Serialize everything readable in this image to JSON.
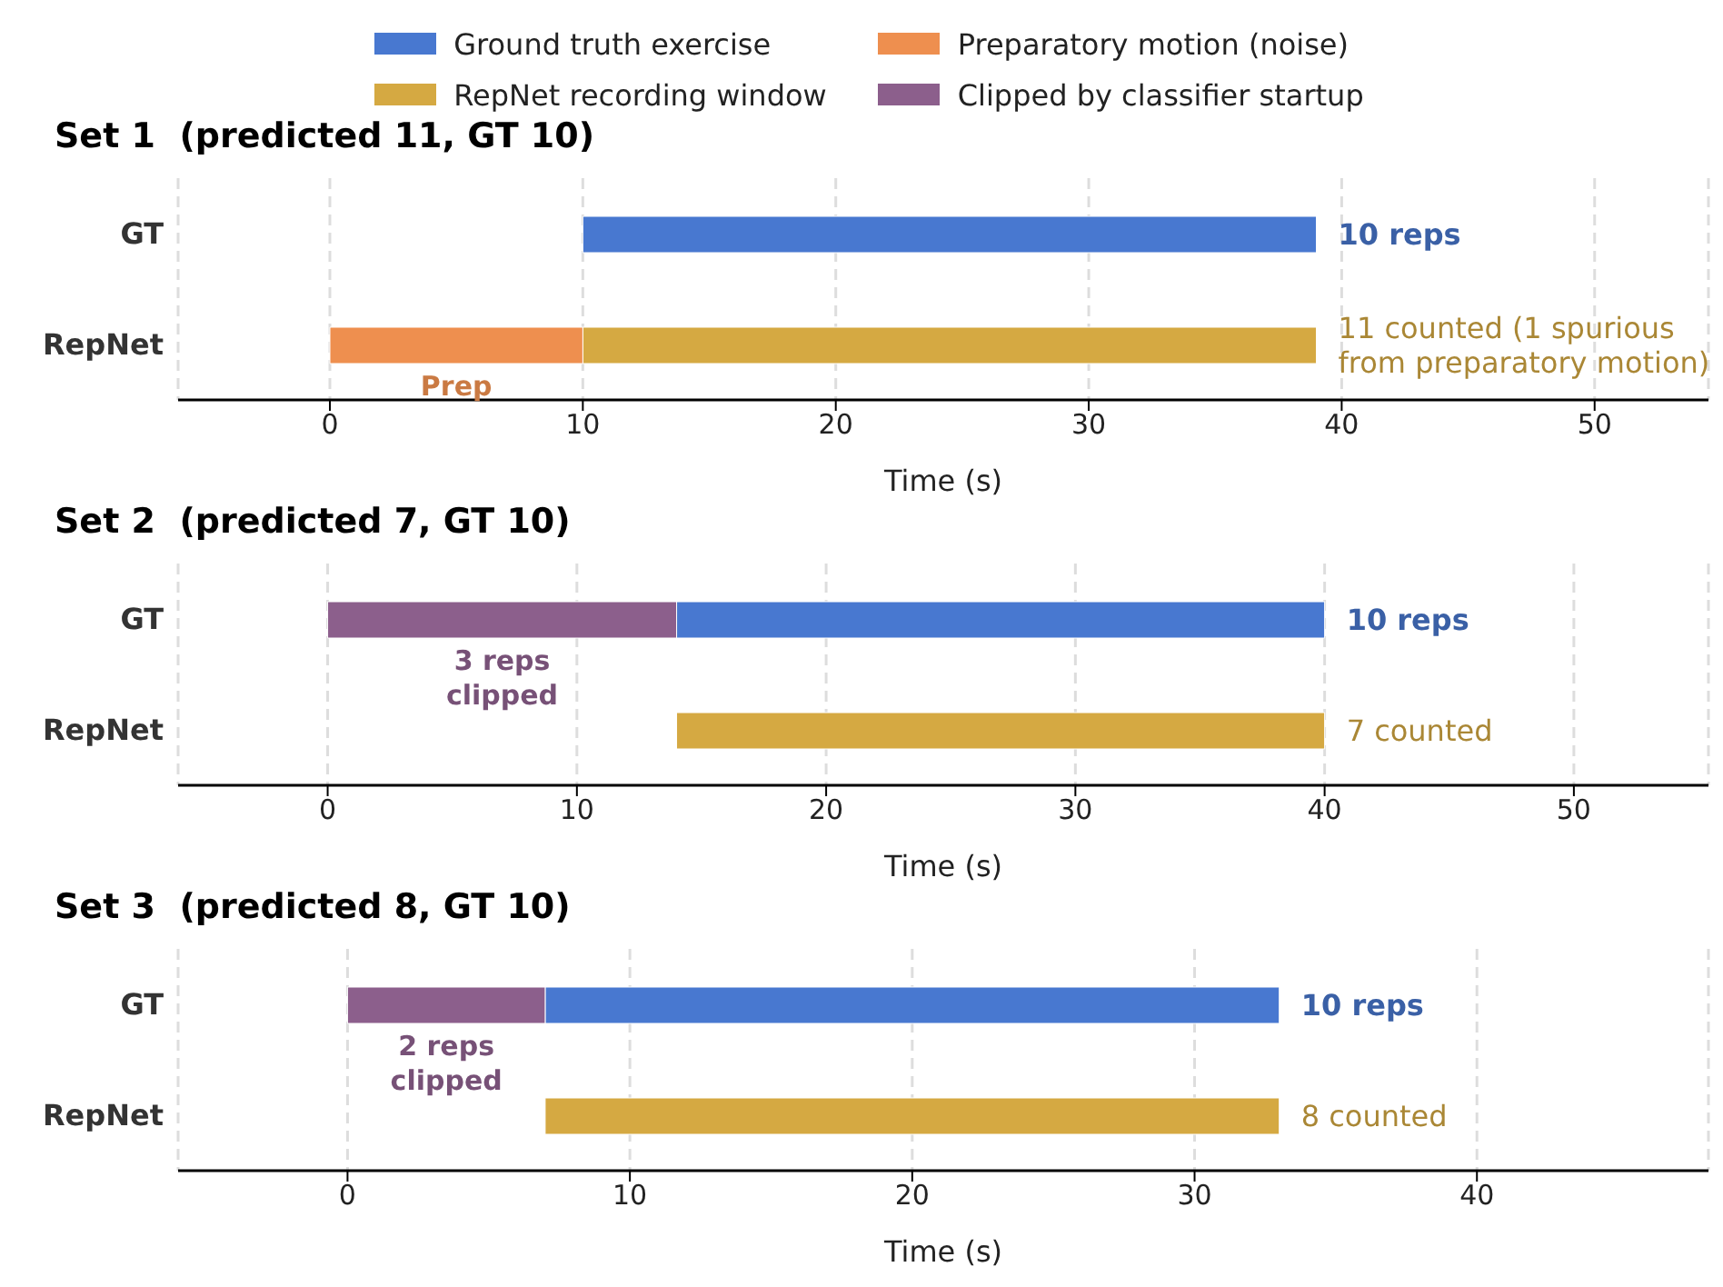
{
  "chart_data": [
    {
      "type": "bar",
      "orientation": "horizontal",
      "title": "Set 1  (predicted 11, GT 10)",
      "xlabel": "Time (s)",
      "categories": [
        "GT",
        "RepNet"
      ],
      "legend": "top",
      "grid": "x",
      "xlim": [
        -6,
        54.5
      ],
      "xticks": [
        0,
        10,
        20,
        30,
        40,
        50
      ],
      "series": [
        {
          "name": "Ground truth exercise",
          "color": "#4878d0",
          "values": [
            29,
            null
          ],
          "base": [
            10,
            null
          ]
        },
        {
          "name": "RepNet recording window",
          "color": "#d5a942",
          "values": [
            null,
            29
          ],
          "base": [
            null,
            10
          ]
        },
        {
          "name": "Preparatory motion (noise)",
          "color": "#ee8f4f",
          "values": [
            null,
            10
          ],
          "base": [
            null,
            0
          ]
        },
        {
          "name": "Clipped by classifier startup",
          "color": "#8c5f8c",
          "values": [
            null,
            null
          ],
          "base": [
            null,
            null
          ]
        }
      ],
      "annotations": [
        {
          "text": "10 reps",
          "x": 39,
          "y": "GT"
        },
        {
          "text": "11 counted (1 spurious\nfrom preparatory motion)",
          "x": 39,
          "y": "RepNet"
        },
        "Prep"
      ]
    },
    {
      "type": "bar",
      "orientation": "horizontal",
      "title": "Set 2  (predicted 7, GT 10)",
      "xlabel": "Time (s)",
      "categories": [
        "GT",
        "RepNet"
      ],
      "grid": "x",
      "xlim": [
        -6,
        55.4
      ],
      "xticks": [
        0,
        10,
        20,
        30,
        40,
        50
      ],
      "series": [
        {
          "color": "#4878d0",
          "values": [
            26,
            null
          ],
          "base": [
            14,
            null
          ]
        },
        {
          "color": "#d5a942",
          "values": [
            null,
            26
          ],
          "base": [
            null,
            14
          ]
        },
        {
          "color": "#8c5f8c",
          "values": [
            14,
            null
          ],
          "base": [
            0,
            null
          ]
        }
      ],
      "annotations": [
        {
          "text": "10 reps",
          "x": 40,
          "y": "GT"
        },
        {
          "text": "7 counted",
          "x": 40,
          "y": "RepNet"
        },
        "3 reps\nclipped"
      ]
    },
    {
      "type": "bar",
      "orientation": "horizontal",
      "title": "Set 3  (predicted 8, GT 10)",
      "xlabel": "Time (s)",
      "categories": [
        "GT",
        "RepNet"
      ],
      "grid": "x",
      "xlim": [
        -6,
        48.2
      ],
      "xticks": [
        0,
        10,
        20,
        30,
        40
      ],
      "series": [
        {
          "color": "#4878d0",
          "values": [
            26,
            null
          ],
          "base": [
            7,
            null
          ]
        },
        {
          "color": "#d5a942",
          "values": [
            null,
            26
          ],
          "base": [
            null,
            7
          ]
        },
        {
          "color": "#8c5f8c",
          "values": [
            7,
            null
          ],
          "base": [
            0,
            null
          ]
        }
      ],
      "annotations": [
        {
          "text": "10 reps",
          "x": 33,
          "y": "GT"
        },
        {
          "text": "8 counted",
          "x": 33,
          "y": "RepNet"
        },
        "2 reps\nclipped"
      ]
    }
  ]
}
